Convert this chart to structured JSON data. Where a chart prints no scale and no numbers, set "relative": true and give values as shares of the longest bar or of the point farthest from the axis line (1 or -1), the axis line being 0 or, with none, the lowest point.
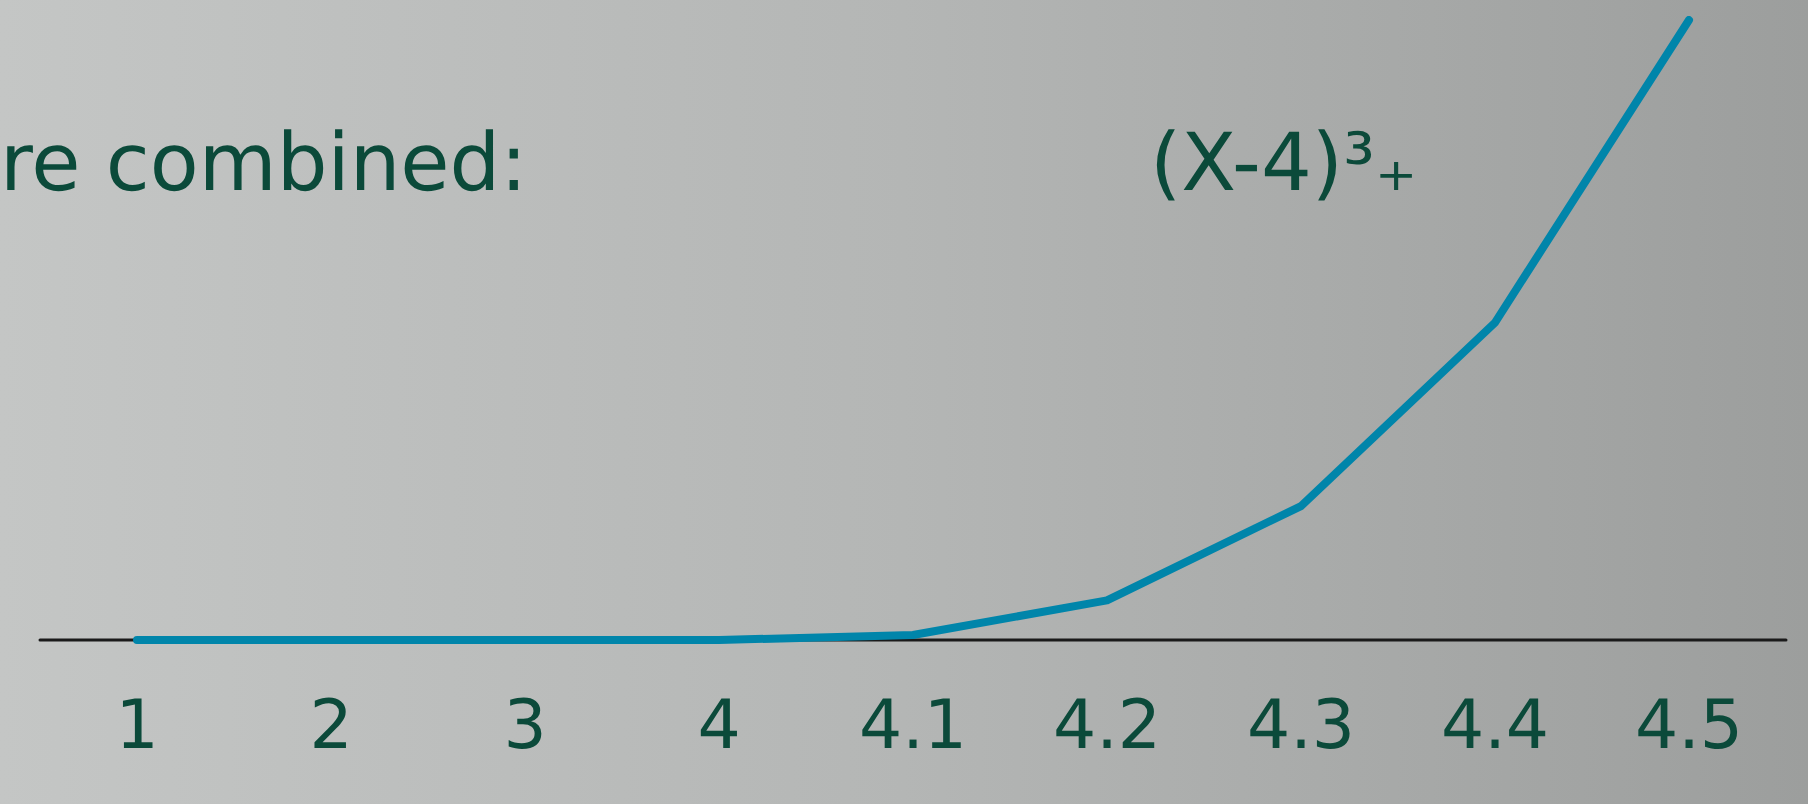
{
  "chart_data": {
    "type": "line",
    "relative": true,
    "categories": [
      "1",
      "2",
      "3",
      "4",
      "4.1",
      "4.2",
      "4.3",
      "4.4",
      "4.5"
    ],
    "series": [
      {
        "color": "#0085aa",
        "values": [
          0,
          0,
          0,
          0,
          0.008,
          0.064,
          0.216,
          0.512,
          1
        ]
      }
    ],
    "annotations": [
      "re combined:",
      "(X-4)³₊"
    ],
    "marker": "none",
    "line_style": "solid",
    "grid": false
  }
}
